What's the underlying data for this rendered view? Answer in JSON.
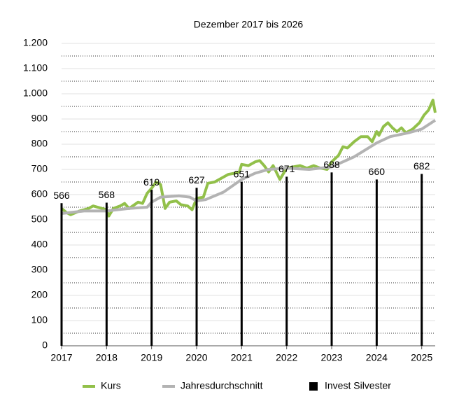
{
  "chart_data": {
    "type": "line",
    "title": "Dezember 2017 bis 2026",
    "xlim": [
      2017,
      2025.3
    ],
    "xticks": [
      2017,
      2018,
      2019,
      2020,
      2021,
      2022,
      2023,
      2024,
      2025
    ],
    "ylim": [
      0,
      1200
    ],
    "yticks": [
      0,
      100,
      200,
      300,
      400,
      500,
      600,
      700,
      800,
      900,
      {
        "value": 1000,
        "label": "1.000"
      },
      {
        "value": 1100,
        "label": "1.100"
      },
      {
        "value": 1200,
        "label": "1.200"
      }
    ],
    "y_minor_ticks": [
      50,
      150,
      250,
      350,
      450,
      550,
      650,
      750,
      850,
      950,
      1050,
      1150
    ],
    "grid": true,
    "legend": "bottom",
    "series": [
      {
        "name": "Kurs",
        "type": "line",
        "color": "#92c04a",
        "x": [
          2017.0,
          2017.1,
          2017.2,
          2017.4,
          2017.6,
          2017.7,
          2017.9,
          2018.0,
          2018.05,
          2018.15,
          2018.3,
          2018.4,
          2018.5,
          2018.7,
          2018.8,
          2018.9,
          2019.0,
          2019.1,
          2019.2,
          2019.3,
          2019.4,
          2019.55,
          2019.65,
          2019.8,
          2019.9,
          2020.0,
          2020.15,
          2020.25,
          2020.4,
          2020.55,
          2020.7,
          2020.85,
          2020.95,
          2021.0,
          2021.15,
          2021.3,
          2021.4,
          2021.5,
          2021.6,
          2021.7,
          2021.85,
          2022.0,
          2022.15,
          2022.3,
          2022.45,
          2022.6,
          2022.75,
          2022.9,
          2023.0,
          2023.15,
          2023.25,
          2023.35,
          2023.5,
          2023.65,
          2023.8,
          2023.9,
          2024.0,
          2024.05,
          2024.15,
          2024.25,
          2024.35,
          2024.45,
          2024.55,
          2024.65,
          2024.8,
          2024.95,
          2025.05,
          2025.15,
          2025.25,
          2025.3
        ],
        "values": [
          545,
          530,
          520,
          535,
          545,
          555,
          545,
          540,
          515,
          545,
          555,
          565,
          545,
          570,
          565,
          605,
          625,
          650,
          640,
          545,
          570,
          575,
          560,
          555,
          540,
          585,
          590,
          645,
          650,
          665,
          680,
          685,
          690,
          720,
          715,
          730,
          735,
          715,
          690,
          715,
          660,
          705,
          710,
          715,
          705,
          715,
          705,
          700,
          730,
          755,
          790,
          785,
          810,
          830,
          830,
          810,
          850,
          835,
          870,
          885,
          865,
          850,
          865,
          845,
          860,
          885,
          915,
          935,
          975,
          925
        ]
      },
      {
        "name": "Jahresdurchschnitt",
        "type": "line",
        "color": "#b3b3b3",
        "x": [
          2017.0,
          2017.5,
          2018.0,
          2018.5,
          2018.9,
          2019.0,
          2019.2,
          2019.6,
          2019.85,
          2020.0,
          2020.2,
          2020.6,
          2021.0,
          2021.3,
          2021.6,
          2022.0,
          2022.5,
          2023.0,
          2023.5,
          2024.0,
          2024.3,
          2024.7,
          2025.0,
          2025.3
        ],
        "values": [
          525,
          535,
          535,
          545,
          550,
          570,
          590,
          595,
          590,
          575,
          580,
          610,
          660,
          685,
          700,
          705,
          700,
          710,
          750,
          805,
          830,
          845,
          860,
          895
        ]
      },
      {
        "name": "Invest Silvester",
        "type": "bar",
        "color": "#000000",
        "x": [
          2017,
          2018,
          2019,
          2020,
          2021,
          2022,
          2023,
          2024,
          2025
        ],
        "values": [
          566,
          568,
          619,
          627,
          651,
          671,
          688,
          660,
          682
        ]
      }
    ]
  }
}
